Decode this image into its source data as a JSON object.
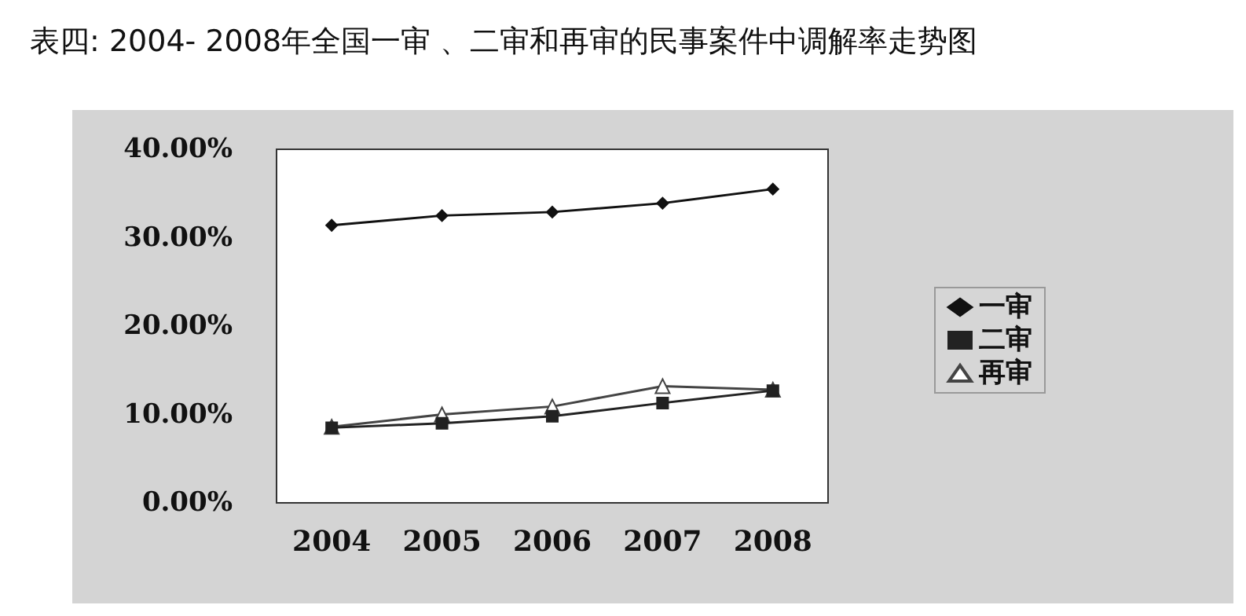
{
  "chart_data": {
    "type": "line",
    "title": "表四: 2004- 2008年全国一审 、二审和再审的民事案件中调解率走势图",
    "categories": [
      "2004",
      "2005",
      "2006",
      "2007",
      "2008"
    ],
    "series": [
      {
        "name": "一审",
        "color": "#111111",
        "marker": "diamond",
        "values": [
          31.4,
          32.5,
          32.9,
          33.9,
          35.5
        ]
      },
      {
        "name": "二审",
        "color": "#222222",
        "marker": "square",
        "values": [
          8.5,
          9.0,
          9.8,
          11.3,
          12.7
        ]
      },
      {
        "name": "再审",
        "color": "#444444",
        "marker": "triangle",
        "values": [
          8.6,
          10.0,
          10.9,
          13.2,
          12.8
        ]
      }
    ],
    "ylim": [
      0,
      40
    ],
    "yticks": [
      {
        "value": 0,
        "label": "0.00%"
      },
      {
        "value": 10,
        "label": "10.00%"
      },
      {
        "value": 20,
        "label": "20.00%"
      },
      {
        "value": 30,
        "label": "30.00%"
      },
      {
        "value": 40,
        "label": "40.00%"
      }
    ],
    "grid": false,
    "legend": "right"
  }
}
